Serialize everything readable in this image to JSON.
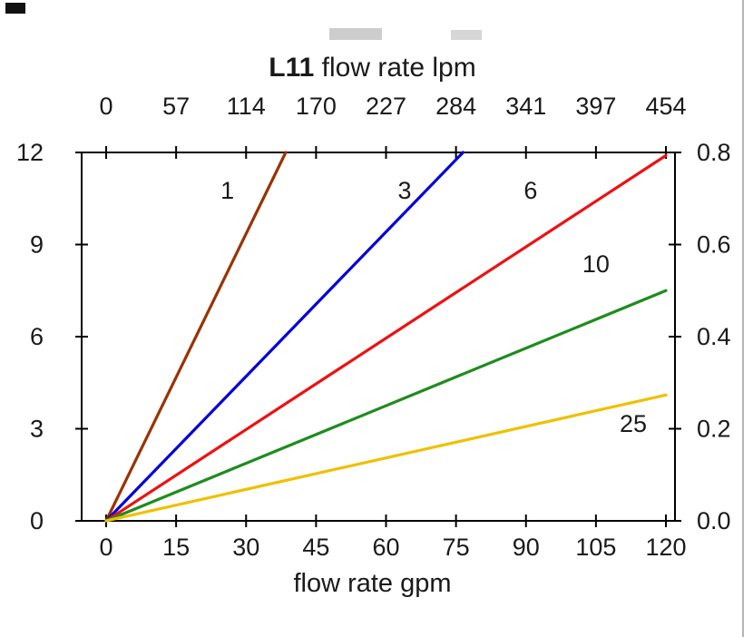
{
  "chart_data": {
    "type": "line",
    "title": {
      "bold": "L11",
      "rest": " flow rate lpm"
    },
    "x_axis_bottom": {
      "label": "flow rate gpm",
      "ticks": [
        0,
        15,
        30,
        45,
        60,
        75,
        90,
        105,
        120
      ]
    },
    "x_axis_top": {
      "tick_labels": [
        "0",
        "57",
        "114",
        "170",
        "227",
        "284",
        "341",
        "397",
        "454"
      ]
    },
    "y_axis_left": {
      "ticks": [
        0,
        3,
        6,
        9,
        12
      ]
    },
    "y_axis_right": {
      "tick_labels": [
        "0.0",
        "0.2",
        "0.4",
        "0.6",
        "0.8"
      ]
    },
    "xlim": [
      0,
      120
    ],
    "ylim": [
      0,
      12
    ],
    "grid": false,
    "legend": "inline-labels",
    "series": [
      {
        "name": "1",
        "color": "#993300",
        "points": [
          [
            0,
            0
          ],
          [
            38.5,
            12
          ]
        ],
        "label_at": [
          26,
          10.5
        ]
      },
      {
        "name": "3",
        "color": "#0000DD",
        "points": [
          [
            0,
            0
          ],
          [
            76.5,
            12
          ]
        ],
        "label_at": [
          64,
          10.5
        ]
      },
      {
        "name": "6",
        "color": "#EE1111",
        "points": [
          [
            0,
            0
          ],
          [
            120,
            11.9
          ]
        ],
        "label_at": [
          91,
          10.5
        ]
      },
      {
        "name": "10",
        "color": "#1E8C1E",
        "points": [
          [
            0,
            0
          ],
          [
            120,
            7.5
          ]
        ],
        "label_at": [
          105,
          8.1
        ]
      },
      {
        "name": "25",
        "color": "#EFC000",
        "points": [
          [
            0,
            0
          ],
          [
            120,
            4.1
          ]
        ],
        "label_at": [
          113,
          2.9
        ]
      }
    ]
  }
}
